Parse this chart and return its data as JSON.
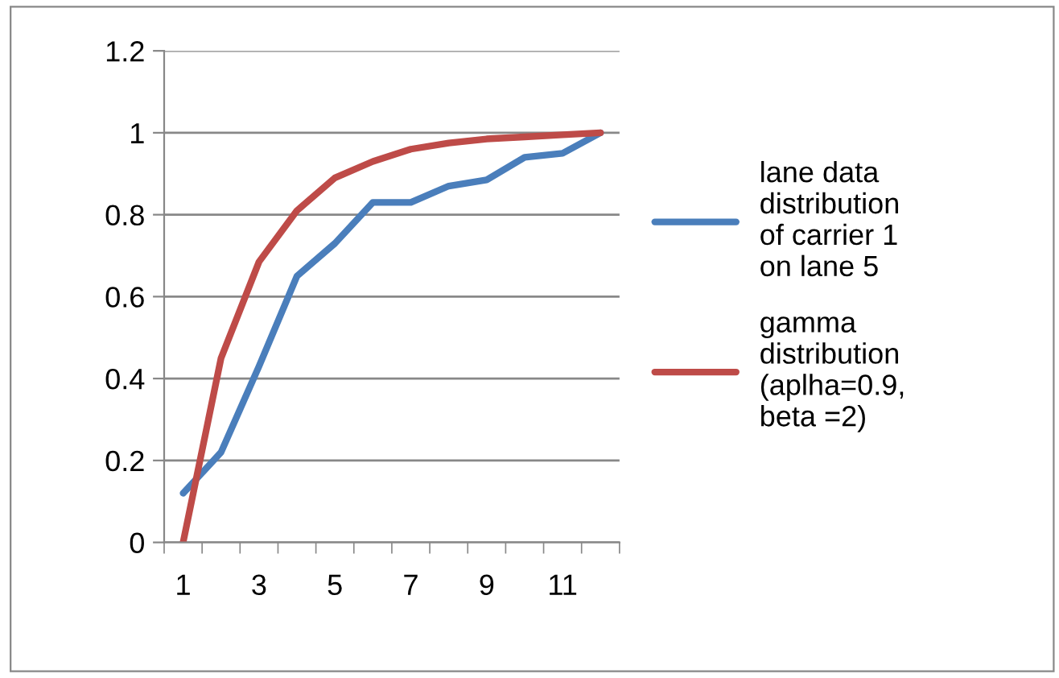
{
  "chart_data": {
    "type": "line",
    "categories": [
      "1",
      null,
      "3",
      null,
      "5",
      null,
      "7",
      null,
      "9",
      null,
      "11",
      null
    ],
    "ylim": [
      0,
      1.2
    ],
    "yticks": [
      0,
      0.2,
      0.4,
      0.6,
      0.8,
      1,
      1.2
    ],
    "grid": "y",
    "legend": "right",
    "marker": "none",
    "line_style": "solid",
    "series": [
      {
        "name": "lane data\ndistribution\nof carrier 1\non lane 5",
        "color": "#4a7ebb",
        "values": [
          0.12,
          0.22,
          0.43,
          0.65,
          0.73,
          0.83,
          0.83,
          0.87,
          0.885,
          0.94,
          0.95,
          1.0
        ]
      },
      {
        "name": "gamma\ndistribution\n(aplha=0.9,\nbeta =2)",
        "color": "#be4b48",
        "values": [
          0,
          0.45,
          0.685,
          0.81,
          0.89,
          0.93,
          0.96,
          0.975,
          0.985,
          0.99,
          0.995,
          1.0
        ]
      }
    ]
  }
}
